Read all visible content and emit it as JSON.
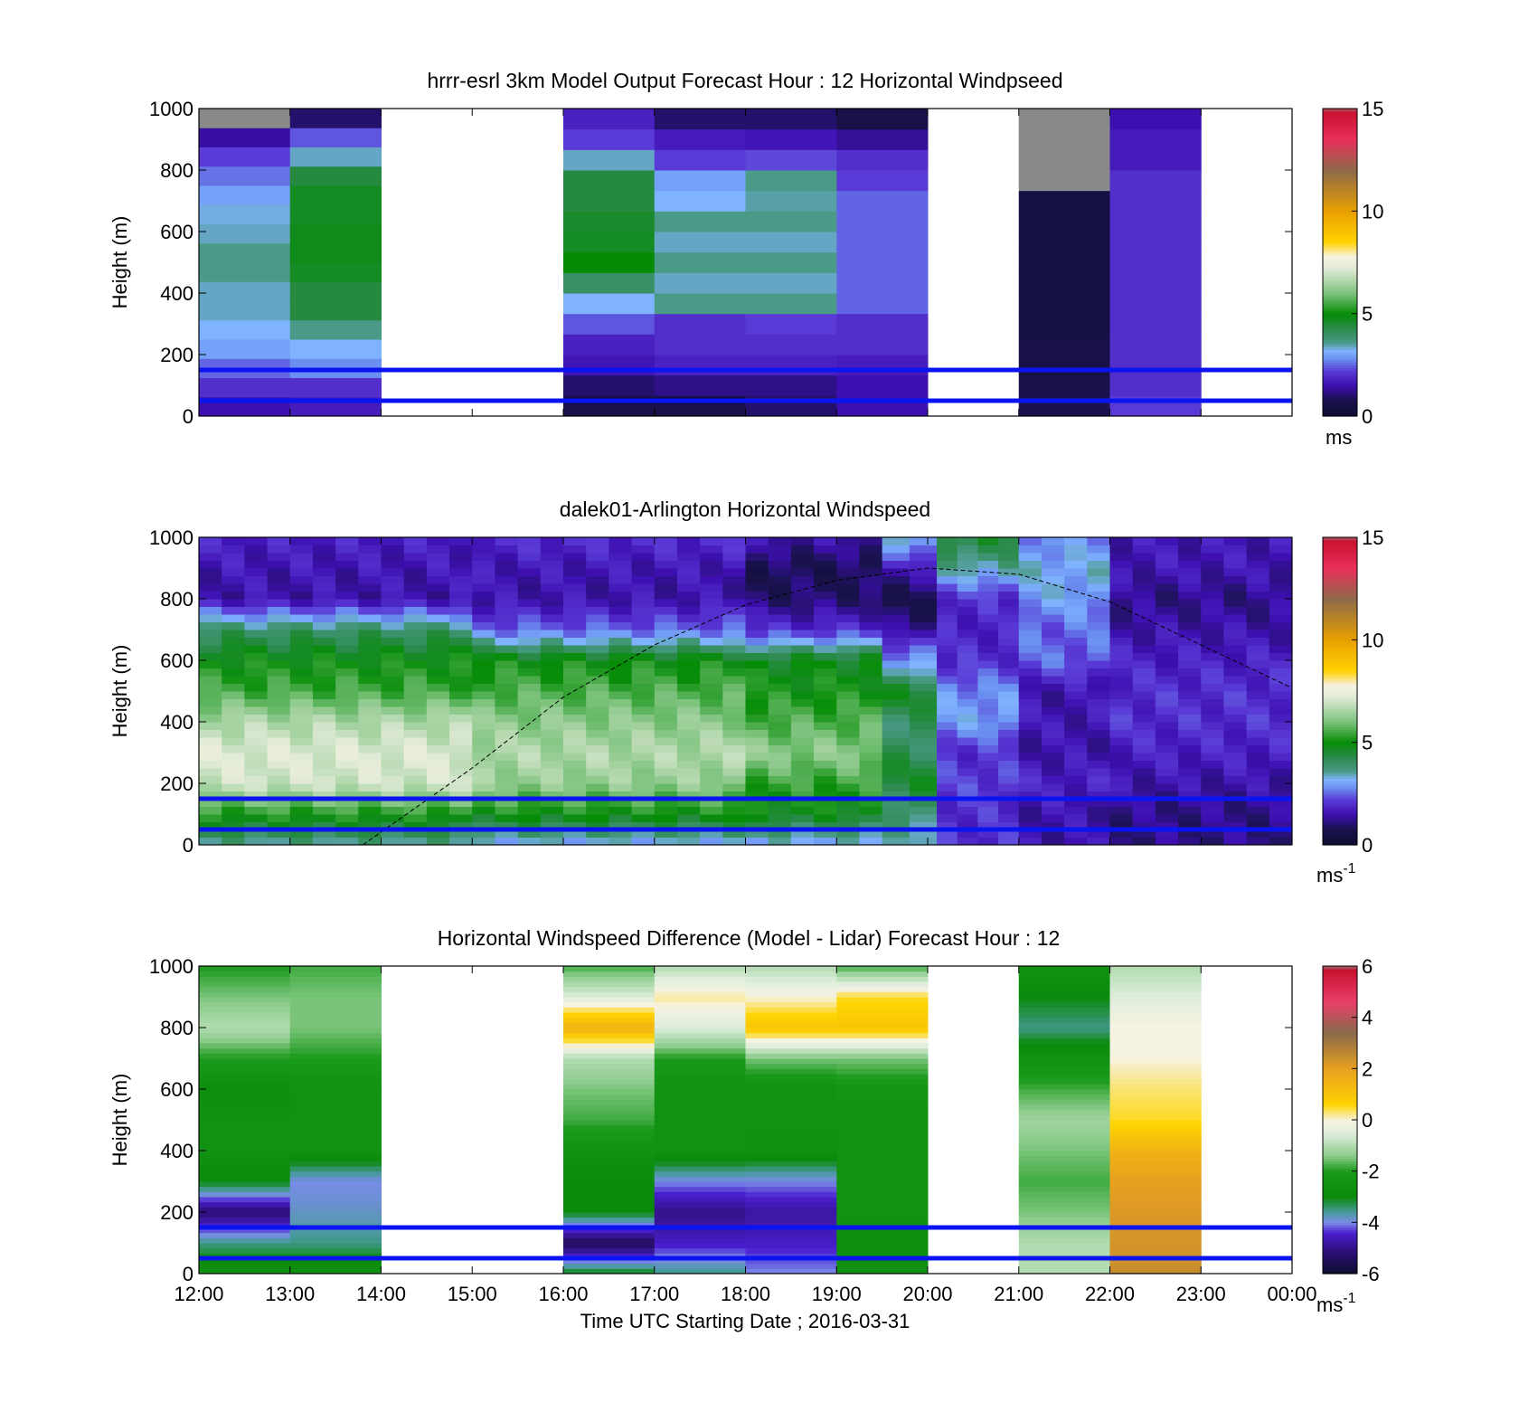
{
  "chart_data": [
    {
      "type": "heatmap",
      "title": "hrrr-esrl 3km Model Output   Forecast Hour : 12 Horizontal Windpseed",
      "ylabel": "Height (m)",
      "xlabel": "",
      "ylim": [
        0,
        1000
      ],
      "yticks": [
        "0",
        "200",
        "400",
        "600",
        "800",
        "1000"
      ],
      "xlim": [
        "12:00",
        "00:00"
      ],
      "colorbar": {
        "min": 0,
        "max": 15,
        "ticks": [
          "0",
          "5",
          "10",
          "15"
        ],
        "unit": "ms",
        "palette": "wind"
      },
      "reference_lines_m": [
        150,
        50
      ],
      "columns": [
        {
          "start_hour": 12,
          "values": [
            1.5,
            2.0,
            2.5,
            3.0,
            3.2,
            3.4,
            3.4,
            3.6,
            3.6,
            3.4,
            3.3,
            3.0,
            2.6,
            2.2,
            1.4,
            -1
          ]
        },
        {
          "start_hour": 13,
          "values": [
            1.7,
            2.0,
            2.8,
            3.2,
            3.6,
            4.4,
            4.4,
            4.7,
            4.8,
            4.8,
            4.7,
            4.7,
            4.4,
            3.4,
            2.4,
            1.0
          ]
        },
        {
          "start_hour": 16,
          "values": [
            0.6,
            1.0,
            1.6,
            1.8,
            2.4,
            3.2,
            4.0,
            5.0,
            4.7,
            4.6,
            4.4,
            4.4,
            3.4,
            2.2,
            1.8
          ]
        },
        {
          "start_hour": 17,
          "values": [
            0.6,
            1.2,
            1.8,
            2.0,
            2.0,
            3.6,
            3.4,
            3.6,
            3.4,
            3.6,
            3.2,
            3.0,
            2.2,
            1.7,
            1.0
          ]
        },
        {
          "start_hour": 18,
          "values": [
            1.0,
            1.2,
            1.8,
            2.0,
            2.2,
            3.6,
            3.4,
            3.6,
            3.4,
            3.6,
            3.5,
            3.6,
            2.3,
            1.6,
            1.0
          ]
        },
        {
          "start_hour": 19,
          "values": [
            1.5,
            1.5,
            1.7,
            2.0,
            2.0,
            2.5,
            2.5,
            2.5,
            2.5,
            2.5,
            2.5,
            2.2,
            2.0,
            1.3,
            0.6
          ]
        },
        {
          "start_hour": 21,
          "values": [
            0.8,
            0.7,
            0.6,
            0.6,
            0.5,
            0.5,
            0.5,
            0.5,
            0.5,
            0.5,
            0.5,
            -1,
            -1,
            -1,
            -1
          ]
        },
        {
          "start_hour": 22,
          "values": [
            2.2,
            2.0,
            2.0,
            2.0,
            2.0,
            2.0,
            2.0,
            2.0,
            2.0,
            2.0,
            2.0,
            2.0,
            1.7,
            1.7,
            1.5
          ]
        }
      ]
    },
    {
      "type": "heatmap",
      "title": "dalek01-Arlington  Horizontal Windspeed",
      "ylabel": "Height (m)",
      "xlabel": "",
      "ylim": [
        0,
        1000
      ],
      "yticks": [
        "0",
        "200",
        "400",
        "600",
        "800",
        "1000"
      ],
      "xlim": [
        "12:00",
        "00:00"
      ],
      "colorbar": {
        "min": 0,
        "max": 15,
        "ticks": [
          "0",
          "5",
          "10",
          "15"
        ],
        "unit": "ms",
        "unit_sup": "-1",
        "palette": "wind"
      },
      "reference_lines_m": [
        150,
        50
      ],
      "profile_heights_m": [
        0,
        100,
        200,
        300,
        400,
        500,
        600,
        700,
        800,
        900,
        1000
      ],
      "profiles": [
        {
          "start_hour": 12.0,
          "end_hour": 15.0,
          "values": [
            3.5,
            5.2,
            7.0,
            7.2,
            6.6,
            5.5,
            5.0,
            4.0,
            1.5,
            1.6,
            1.8
          ]
        },
        {
          "start_hour": 15.0,
          "end_hour": 18.0,
          "values": [
            3.0,
            5.0,
            6.3,
            6.6,
            6.2,
            5.6,
            5.0,
            2.5,
            1.5,
            1.6,
            2.0
          ]
        },
        {
          "start_hour": 18.0,
          "end_hour": 19.5,
          "values": [
            3.0,
            4.8,
            5.4,
            6.2,
            5.6,
            5.1,
            4.8,
            2.0,
            1.0,
            0.8,
            1.5
          ]
        },
        {
          "start_hour": 19.5,
          "end_hour": 20.1,
          "values": [
            3.2,
            4.0,
            4.5,
            4.2,
            4.0,
            4.6,
            3.0,
            1.2,
            0.8,
            1.5,
            3.5
          ]
        },
        {
          "start_hour": 20.1,
          "end_hour": 21.0,
          "values": [
            2.0,
            2.0,
            2.2,
            2.0,
            3.0,
            2.8,
            2.0,
            1.8,
            2.0,
            3.5,
            4.5
          ]
        },
        {
          "start_hour": 21.0,
          "end_hour": 22.0,
          "values": [
            1.5,
            1.5,
            1.8,
            1.5,
            1.6,
            1.5,
            2.5,
            2.5,
            3.0,
            3.2,
            2.8
          ]
        },
        {
          "start_hour": 22.0,
          "end_hour": 24.0,
          "values": [
            1.2,
            1.2,
            1.5,
            1.8,
            2.0,
            2.0,
            1.8,
            1.5,
            1.2,
            1.6,
            1.6
          ]
        }
      ],
      "overlay_curve": {
        "style": "dashed",
        "x_hours": [
          13.8,
          15.0,
          16.0,
          17.0,
          18.0,
          19.0,
          20.0,
          21.0,
          22.0,
          23.0,
          24.0
        ],
        "y_m": [
          0,
          250,
          480,
          650,
          780,
          860,
          900,
          880,
          790,
          650,
          510
        ]
      }
    },
    {
      "type": "heatmap",
      "title": "Horizontal Windspeed Difference (Model - Lidar) Forecast Hour : 12",
      "ylabel": "Height (m)",
      "xlabel": "Time UTC  Starting Date ; 2016-03-31",
      "ylim": [
        0,
        1000
      ],
      "yticks": [
        "0",
        "200",
        "400",
        "600",
        "800",
        "1000"
      ],
      "xticks": [
        "12:00",
        "13:00",
        "14:00",
        "15:00",
        "16:00",
        "17:00",
        "18:00",
        "19:00",
        "20:00",
        "21:00",
        "22:00",
        "23:00",
        "00:00"
      ],
      "colorbar": {
        "min": -6,
        "max": 6,
        "ticks": [
          "-6",
          "-4",
          "-2",
          "0",
          "2",
          "4",
          "6"
        ],
        "unit": "ms",
        "unit_sup": "-1",
        "palette": "diff"
      },
      "reference_lines_m": [
        150,
        50
      ],
      "profile_heights_m": [
        0,
        100,
        200,
        300,
        400,
        500,
        600,
        700,
        800,
        900,
        1000
      ],
      "profiles": [
        {
          "start_hour": 12,
          "end_hour": 13,
          "values": [
            -2.5,
            -3.5,
            -5.2,
            -3.0,
            -2.5,
            -2.5,
            -2.8,
            -2.0,
            -1.0,
            -1.5,
            -2.0
          ]
        },
        {
          "start_hour": 13,
          "end_hour": 14,
          "values": [
            -2.5,
            -3.5,
            -3.8,
            -4.0,
            -2.5,
            -2.5,
            -2.5,
            -2.0,
            -1.5,
            -1.5,
            -1.8
          ]
        },
        {
          "start_hour": 16,
          "end_hour": 17,
          "values": [
            -3.0,
            -5.5,
            -3.0,
            -3.0,
            -2.5,
            -1.8,
            -1.5,
            -1.0,
            1.5,
            -0.5,
            -1.8
          ]
        },
        {
          "start_hour": 17,
          "end_hour": 18,
          "values": [
            -3.5,
            -4.5,
            -5.0,
            -4.0,
            -2.5,
            -2.5,
            -2.5,
            -2.0,
            -0.5,
            0.2,
            -1.0
          ]
        },
        {
          "start_hour": 18,
          "end_hour": 19,
          "values": [
            -4.0,
            -4.5,
            -4.8,
            -4.0,
            -2.6,
            -2.5,
            -2.5,
            -1.5,
            1.0,
            0.0,
            -1.0
          ]
        },
        {
          "start_hour": 19,
          "end_hour": 20,
          "values": [
            -2.5,
            -2.8,
            -2.5,
            -2.5,
            -2.5,
            -2.5,
            -2.3,
            -1.5,
            1.0,
            0.5,
            -1.8
          ]
        },
        {
          "start_hour": 21,
          "end_hour": 22,
          "values": [
            -1.0,
            -1.0,
            -1.5,
            -1.8,
            -1.5,
            -1.2,
            -1.8,
            -2.5,
            -3.5,
            -3.0,
            -2.5
          ]
        },
        {
          "start_hour": 22,
          "end_hour": 23,
          "values": [
            2.5,
            2.3,
            2.2,
            2.0,
            1.5,
            0.5,
            0.3,
            0.0,
            0.0,
            -0.5,
            -1.0
          ]
        }
      ]
    }
  ]
}
